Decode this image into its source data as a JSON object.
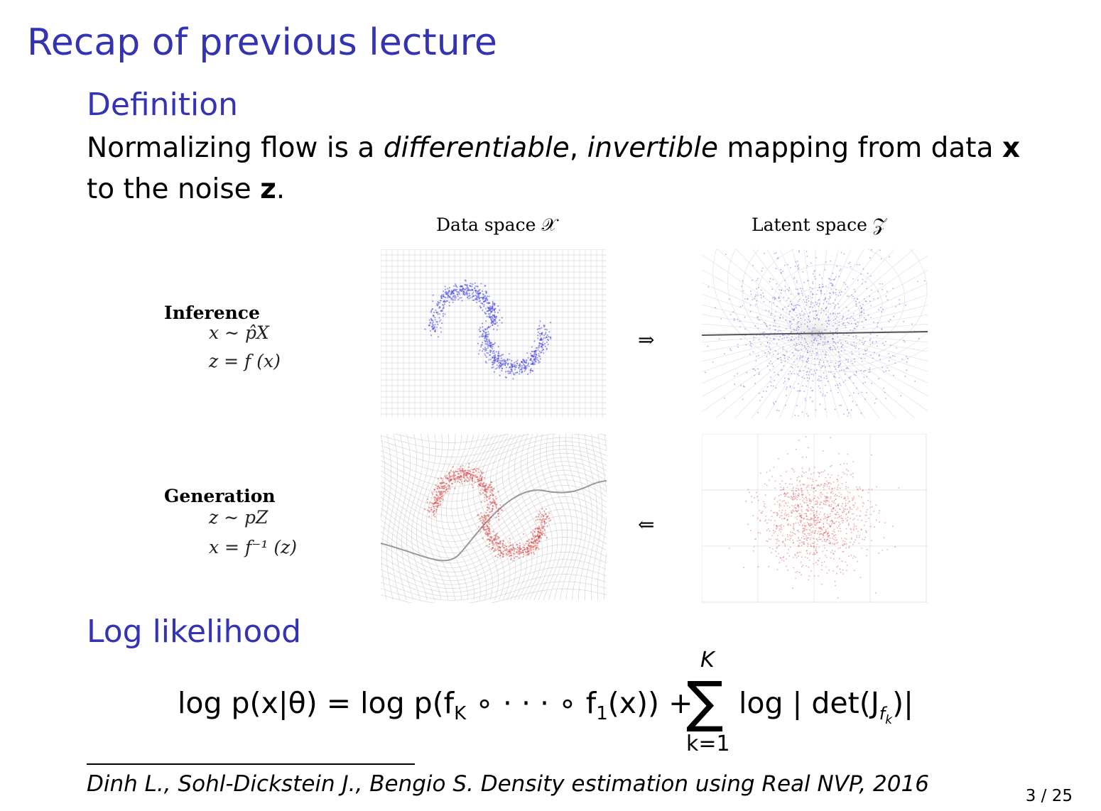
{
  "slide": {
    "title": "Recap of previous lecture",
    "definition_heading": "Definition",
    "definition": {
      "part1": "Normalizing flow is a ",
      "italic1": "differentiable",
      "part2": ", ",
      "italic2": "invertible",
      "part3": " mapping from data ",
      "bold1": "x",
      "part4": " to the noise ",
      "bold2": "z",
      "part5": "."
    },
    "figure": {
      "col_data_label": "Data space 𝒳",
      "col_latent_label": "Latent space 𝒵",
      "inference_label": "Inference",
      "inference_eq1": "x ∼ p̂X",
      "inference_eq2": "z = f (x)",
      "generation_label": "Generation",
      "generation_eq1": "z ∼ pZ",
      "generation_eq2": "x = f⁻¹ (z)",
      "arrow_forward": "⇒",
      "arrow_backward": "⇐",
      "inference_color": "#4040e0",
      "generation_color": "#d84848"
    },
    "log_likelihood_heading": "Log likelihood",
    "formula": {
      "lhs": "log p(x|θ) = log p(f",
      "sub_K": "K",
      "mid": " ∘ · · · ∘ f",
      "sub_1": "1",
      "mid2": "(x)) +",
      "sum_top": "K",
      "sum_bottom": "k=1",
      "rhs": "log | det(J",
      "sub_fk": "f",
      "sub_k": "k",
      "rhs_end": ")|"
    },
    "footnote": "Dinh L., Sohl-Dickstein J., Bengio S. Density estimation using Real NVP, 2016",
    "page_number": "3 / 25"
  }
}
